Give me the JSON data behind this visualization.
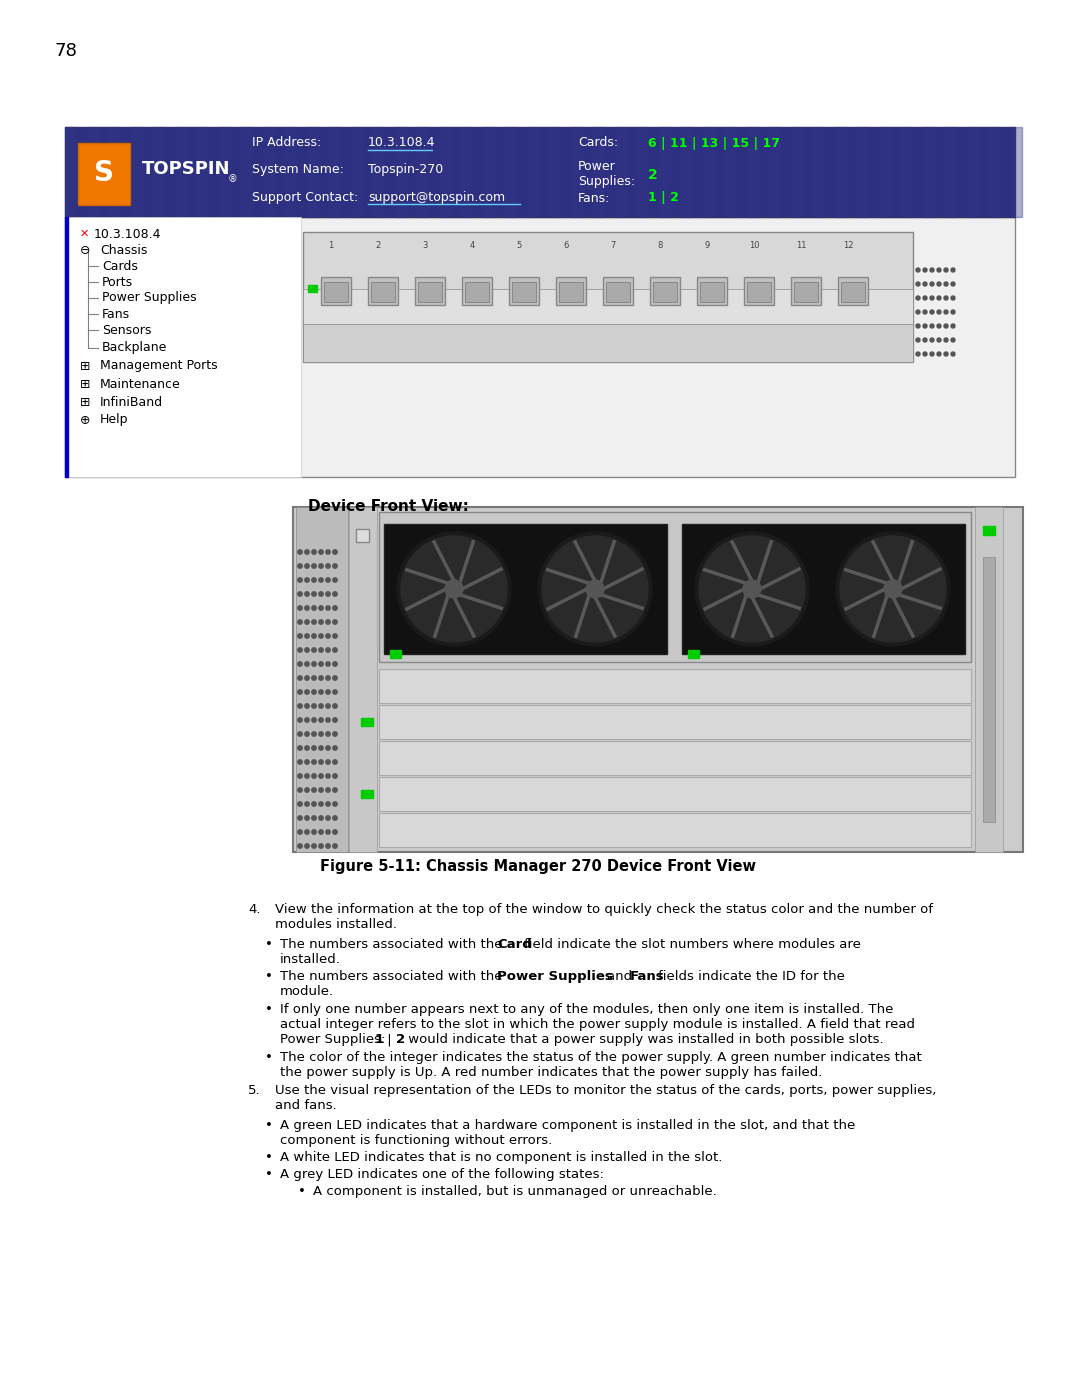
{
  "page_number": "78",
  "bg_color": "#ffffff",
  "header_bg": "#2d3080",
  "header_text_color": "#ffffff",
  "header_green": "#00ff00",
  "logo_bg": "#f07800",
  "ip_address": "10.3.108.4",
  "system_name": "Topspin-270",
  "support_contact": "support@topspin.com",
  "cards_label": "Cards:",
  "cards_value": "6 | 11 | 13 | 15 | 17",
  "power_value": "2",
  "fans_label": "Fans:",
  "fans_value": "1 | 2",
  "device_front_view_label": "Device Front View:",
  "figure_caption": "Figure 5-11: Chassis Manager 270 Device Front View",
  "green_led": "#00cc00",
  "blue_line_color": "#0000cc"
}
